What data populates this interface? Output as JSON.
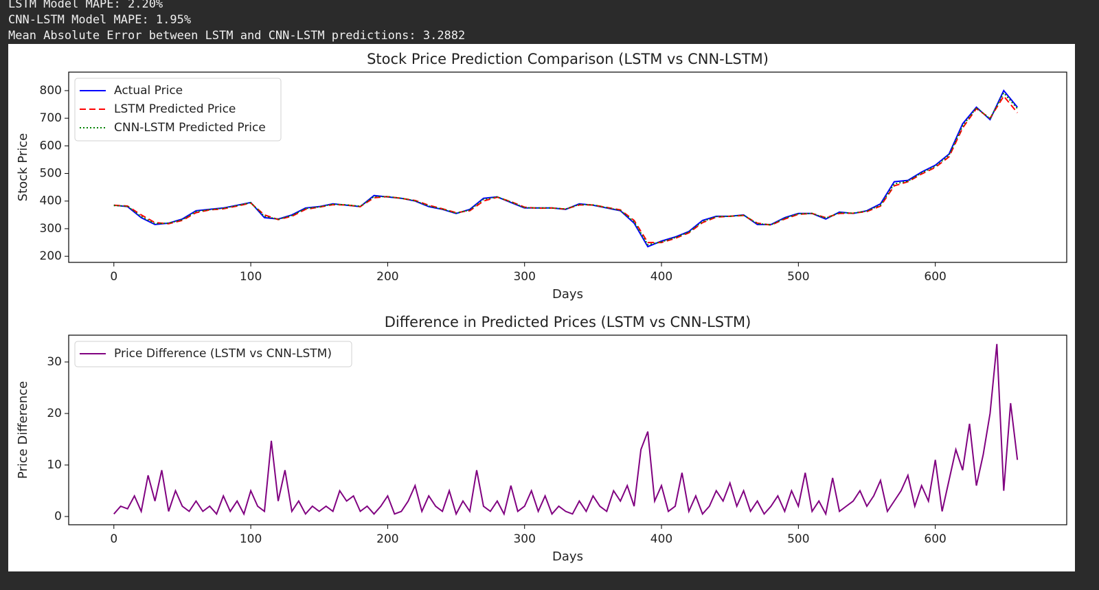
{
  "console": [
    "LSTM Model MAPE: 2.20%",
    "CNN-LSTM Model MAPE: 1.95%",
    "Mean Absolute Error between LSTM and CNN-LSTM predictions: 3.2882"
  ],
  "chart_data": [
    {
      "type": "line",
      "title": "Stock Price Prediction Comparison (LSTM vs CNN-LSTM)",
      "x_label": "Days",
      "y_label": "Stock Price",
      "xlim": [
        -33,
        696
      ],
      "ylim": [
        178,
        867
      ],
      "xticks": [
        0,
        100,
        200,
        300,
        400,
        500,
        600
      ],
      "yticks": [
        200,
        300,
        400,
        500,
        600,
        700,
        800
      ],
      "legend": "upper left",
      "x": [
        0,
        10,
        20,
        30,
        40,
        50,
        60,
        70,
        80,
        90,
        100,
        110,
        120,
        130,
        140,
        150,
        160,
        170,
        180,
        190,
        200,
        210,
        220,
        230,
        240,
        250,
        260,
        270,
        280,
        290,
        300,
        310,
        320,
        330,
        340,
        350,
        360,
        370,
        380,
        390,
        400,
        410,
        420,
        430,
        440,
        450,
        460,
        470,
        480,
        490,
        500,
        510,
        520,
        530,
        540,
        550,
        560,
        570,
        580,
        590,
        600,
        610,
        620,
        630,
        640,
        650,
        660
      ],
      "series": [
        {
          "name": "Actual Price",
          "color": "#0000ff",
          "style": "solid",
          "values": [
            385,
            380,
            340,
            315,
            320,
            335,
            365,
            370,
            375,
            385,
            395,
            340,
            335,
            350,
            375,
            380,
            390,
            385,
            380,
            420,
            415,
            410,
            400,
            380,
            370,
            355,
            370,
            410,
            415,
            395,
            375,
            375,
            375,
            370,
            390,
            385,
            375,
            365,
            320,
            235,
            255,
            270,
            290,
            330,
            345,
            345,
            350,
            315,
            315,
            340,
            355,
            355,
            335,
            360,
            355,
            365,
            390,
            470,
            475,
            505,
            530,
            570,
            680,
            740,
            695,
            800,
            740
          ]
        },
        {
          "name": "LSTM Predicted Price",
          "color": "#ff0000",
          "style": "dashed",
          "values": [
            385,
            382,
            350,
            322,
            318,
            330,
            358,
            368,
            372,
            382,
            393,
            350,
            333,
            345,
            370,
            378,
            387,
            386,
            380,
            412,
            416,
            410,
            402,
            385,
            372,
            358,
            365,
            400,
            414,
            398,
            378,
            374,
            375,
            371,
            386,
            386,
            377,
            368,
            330,
            250,
            250,
            265,
            285,
            322,
            342,
            345,
            348,
            320,
            313,
            335,
            352,
            355,
            340,
            355,
            356,
            362,
            382,
            455,
            470,
            498,
            522,
            560,
            665,
            735,
            700,
            780,
            720
          ]
        },
        {
          "name": "CNN-LSTM Predicted Price",
          "color": "#008000",
          "style": "dotted",
          "values": [
            384,
            381,
            344,
            318,
            320,
            333,
            362,
            369,
            374,
            384,
            394,
            345,
            334,
            348,
            373,
            379,
            389,
            386,
            381,
            416,
            416,
            410,
            401,
            382,
            371,
            356,
            368,
            406,
            415,
            397,
            376,
            375,
            375,
            371,
            388,
            386,
            376,
            366,
            325,
            242,
            252,
            268,
            288,
            326,
            344,
            345,
            349,
            318,
            314,
            338,
            354,
            355,
            338,
            358,
            356,
            364,
            386,
            462,
            472,
            502,
            526,
            566,
            672,
            738,
            698,
            792,
            735
          ]
        }
      ]
    },
    {
      "type": "line",
      "title": "Difference in Predicted Prices (LSTM vs CNN-LSTM)",
      "x_label": "Days",
      "y_label": "Price Difference",
      "xlim": [
        -33,
        696
      ],
      "ylim": [
        -1.6,
        35.2
      ],
      "xticks": [
        0,
        100,
        200,
        300,
        400,
        500,
        600
      ],
      "yticks": [
        0,
        10,
        20,
        30
      ],
      "legend": "upper left",
      "x": [
        0,
        5,
        10,
        15,
        20,
        25,
        30,
        35,
        40,
        45,
        50,
        55,
        60,
        65,
        70,
        75,
        80,
        85,
        90,
        95,
        100,
        105,
        110,
        115,
        120,
        125,
        130,
        135,
        140,
        145,
        150,
        155,
        160,
        165,
        170,
        175,
        180,
        185,
        190,
        195,
        200,
        205,
        210,
        215,
        220,
        225,
        230,
        235,
        240,
        245,
        250,
        255,
        260,
        265,
        270,
        275,
        280,
        285,
        290,
        295,
        300,
        305,
        310,
        315,
        320,
        325,
        330,
        335,
        340,
        345,
        350,
        355,
        360,
        365,
        370,
        375,
        380,
        385,
        390,
        395,
        400,
        405,
        410,
        415,
        420,
        425,
        430,
        435,
        440,
        445,
        450,
        455,
        460,
        465,
        470,
        475,
        480,
        485,
        490,
        495,
        500,
        505,
        510,
        515,
        520,
        525,
        530,
        535,
        540,
        545,
        550,
        555,
        560,
        565,
        570,
        575,
        580,
        585,
        590,
        595,
        600,
        605,
        610,
        615,
        620,
        625,
        630,
        635,
        640,
        645,
        650,
        655,
        660
      ],
      "series": [
        {
          "name": "Price Difference (LSTM vs CNN-LSTM)",
          "color": "#800080",
          "style": "solid",
          "values": [
            0.5,
            2,
            1.5,
            4,
            1,
            8,
            3,
            9,
            1,
            5,
            2,
            1,
            3,
            1,
            2,
            0.5,
            4,
            1,
            3,
            0.5,
            5,
            2,
            1,
            14.7,
            3,
            9,
            1,
            3,
            0.5,
            2,
            1,
            2,
            1,
            5,
            3,
            4,
            1,
            2,
            0.5,
            2,
            4,
            0.5,
            1,
            3,
            6,
            1,
            4,
            2,
            1,
            5,
            0.5,
            3,
            1,
            9,
            2,
            1,
            3,
            0.5,
            6,
            1,
            2,
            5,
            1,
            4,
            0.5,
            2,
            1,
            0.5,
            3,
            1,
            4,
            2,
            1,
            5,
            3,
            6,
            2,
            13,
            16.5,
            3,
            6,
            1,
            2,
            8.5,
            1,
            4,
            0.5,
            2,
            5,
            3,
            6.5,
            2,
            5,
            1,
            3,
            0.5,
            2,
            4,
            1,
            5,
            2,
            8.5,
            1,
            3,
            0.5,
            7.5,
            1,
            2,
            3,
            5,
            2,
            4,
            7,
            1,
            3,
            5,
            8,
            2,
            6,
            3,
            11,
            1,
            7,
            13,
            9,
            18,
            6,
            12,
            20,
            33.5,
            5,
            22,
            11
          ]
        }
      ]
    }
  ]
}
